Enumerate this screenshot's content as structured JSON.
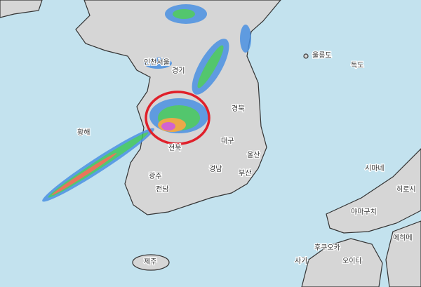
{
  "labels": [
    "인천서울",
    "경기",
    "울릉도",
    "독도",
    "황해",
    "경북",
    "전북",
    "대구",
    "울산",
    "경남",
    "부산",
    "광주",
    "전남",
    "제주",
    "시마네",
    "히로시",
    "야마구치",
    "후쿠오카",
    "사가",
    "오이타",
    "에히메"
  ]
}
